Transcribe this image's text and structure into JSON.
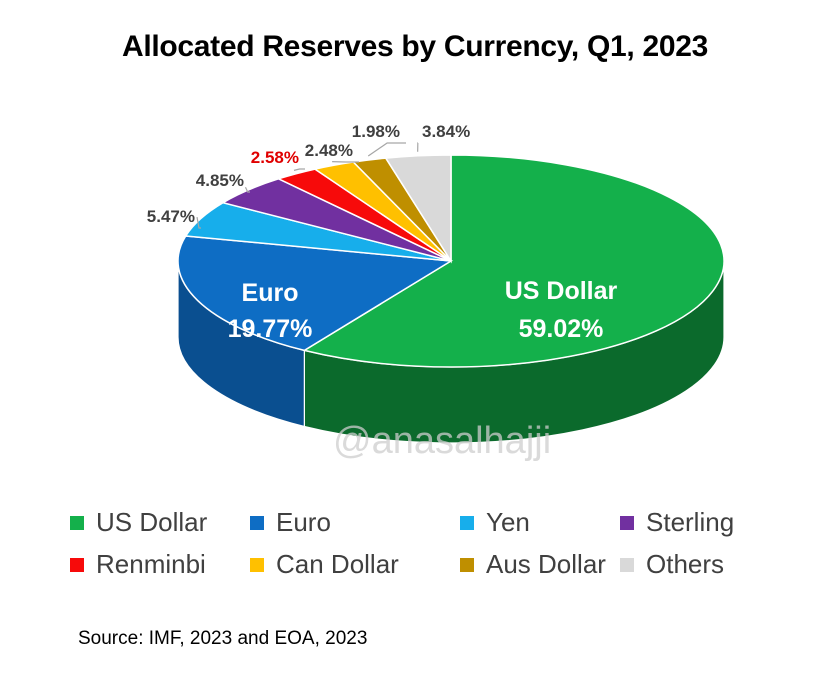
{
  "chart_data": {
    "type": "pie",
    "title": "Allocated Reserves by Currency, Q1, 2023",
    "source": "Source: IMF, 2023 and EOA, 2023",
    "watermark": "@anasalhajji",
    "slices": [
      {
        "name": "US Dollar",
        "value": 59.02,
        "label": "59.02%",
        "color": "#14B04B",
        "dark": "#0B6A2C"
      },
      {
        "name": "Euro",
        "value": 19.77,
        "label": "19.77%",
        "color": "#0E6DC4",
        "dark": "#0A4F90"
      },
      {
        "name": "Yen",
        "value": 5.47,
        "label": "5.47%",
        "color": "#17AEEB",
        "dark": "#0E7FB0"
      },
      {
        "name": "Sterling",
        "value": 4.85,
        "label": "4.85%",
        "color": "#7130A0",
        "dark": "#4E2070"
      },
      {
        "name": "Renminbi",
        "value": 2.58,
        "label": "2.58%",
        "color": "#F70A0A",
        "dark": "#A80707",
        "label_color": "#E00000"
      },
      {
        "name": "Can Dollar",
        "value": 2.48,
        "label": "2.48%",
        "color": "#FFC000",
        "dark": "#B88A00"
      },
      {
        "name": "Aus Dollar",
        "value": 1.98,
        "label": "1.98%",
        "color": "#BF8F00",
        "dark": "#7F5F00"
      },
      {
        "name": "Others",
        "value": 3.84,
        "label": "3.84%",
        "color": "#D9D9D9",
        "dark": "#A6A6A6"
      }
    ]
  }
}
